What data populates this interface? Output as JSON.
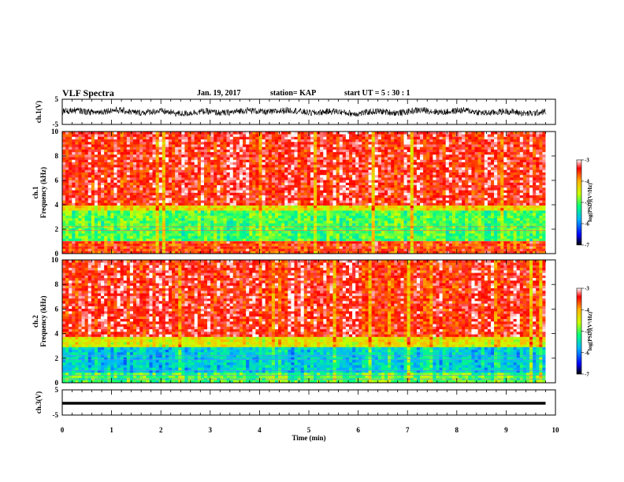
{
  "header": {
    "title": "VLF Spectra",
    "date": "Jan. 19, 2017",
    "station": "station= KAP",
    "start_ut": "start  UT =  5 : 30 : 1"
  },
  "colorbar": {
    "label": "log(PSD)(V²/Hz)",
    "ticks": [
      "-3",
      "-4",
      "-5",
      "-6",
      "-7"
    ]
  },
  "chart_data": [
    {
      "type": "line",
      "name": "ch.1 waveform",
      "ylabel": "ch.1(V)",
      "ylim": [
        -5,
        5
      ],
      "yticks": [
        "5",
        "-5"
      ],
      "x": [
        0,
        10
      ],
      "note_values": "dense noisy waveform oscillating roughly between -1.5 and 1.5 V over 0–9.8 min"
    },
    {
      "type": "heatmap",
      "name": "ch.1 spectrogram",
      "ylabel": "ch.1 Frequency (kHz)",
      "ylim": [
        0,
        10
      ],
      "yticks": [
        "0",
        "2",
        "4",
        "6",
        "8",
        "10"
      ],
      "x_range_min": [
        0,
        9.8
      ],
      "bands": [
        {
          "from_khz": 0,
          "to_khz": 1.0,
          "log_psd": -3.6
        },
        {
          "from_khz": 1.0,
          "to_khz": 3.5,
          "log_psd": -5.0
        },
        {
          "from_khz": 3.5,
          "to_khz": 4.0,
          "log_psd": -4.3
        },
        {
          "from_khz": 4.0,
          "to_khz": 10.0,
          "log_psd": -3.4
        }
      ],
      "colorscale_range": [
        -7,
        -3
      ]
    },
    {
      "type": "heatmap",
      "name": "ch.2 spectrogram",
      "ylabel": "ch.2 Frequency (kHz)",
      "ylim": [
        0,
        10
      ],
      "yticks": [
        "0",
        "2",
        "4",
        "6",
        "8",
        "10"
      ],
      "x_range_min": [
        0,
        9.8
      ],
      "bands": [
        {
          "from_khz": 0,
          "to_khz": 0.8,
          "log_psd": -5.0
        },
        {
          "from_khz": 0.8,
          "to_khz": 3.0,
          "log_psd": -5.6
        },
        {
          "from_khz": 3.0,
          "to_khz": 3.8,
          "log_psd": -4.4
        },
        {
          "from_khz": 3.8,
          "to_khz": 10.0,
          "log_psd": -3.4
        }
      ],
      "colorscale_range": [
        -7,
        -3
      ]
    },
    {
      "type": "line",
      "name": "ch.3 waveform",
      "ylabel": "ch.3(V)",
      "ylim": [
        -5,
        5
      ],
      "yticks": [
        "5",
        "-5"
      ],
      "x": [
        0,
        9.8
      ],
      "y": [
        -0.3,
        -0.3
      ],
      "note_values": "nearly flat thick trace near -0.3 V"
    }
  ],
  "xaxis": {
    "label": "Time (min)",
    "ticks": [
      "0",
      "1",
      "2",
      "3",
      "4",
      "5",
      "6",
      "7",
      "8",
      "9",
      "10"
    ],
    "range": [
      0,
      10
    ]
  }
}
